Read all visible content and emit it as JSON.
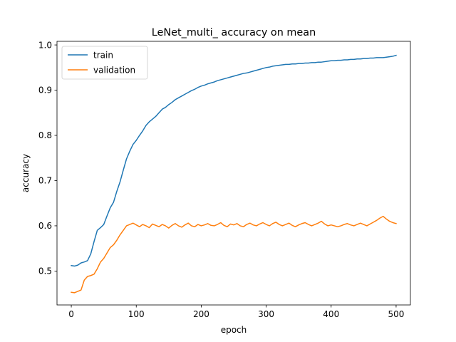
{
  "chart_data": {
    "type": "line",
    "title": "LeNet_multi_ accuracy on mean",
    "xlabel": "epoch",
    "ylabel": "accuracy",
    "xlim": [
      -22,
      522
    ],
    "ylim": [
      0.425,
      1.008
    ],
    "x_ticks": [
      0,
      100,
      200,
      300,
      400,
      500
    ],
    "y_ticks": [
      0.5,
      0.6,
      0.7,
      0.8,
      0.9,
      1.0
    ],
    "x_tick_labels": [
      "0",
      "100",
      "200",
      "300",
      "400",
      "500"
    ],
    "y_tick_labels": [
      "0.5",
      "0.6",
      "0.7",
      "0.8",
      "0.9",
      "1.0"
    ],
    "grid": false,
    "legend_position": "top-left",
    "x_range": [
      0,
      500
    ],
    "x_step": 5,
    "series": [
      {
        "name": "train",
        "color": "#1f77b4",
        "values": [
          0.512,
          0.511,
          0.513,
          0.518,
          0.52,
          0.523,
          0.538,
          0.565,
          0.59,
          0.596,
          0.603,
          0.622,
          0.64,
          0.652,
          0.676,
          0.697,
          0.723,
          0.748,
          0.765,
          0.78,
          0.789,
          0.8,
          0.81,
          0.822,
          0.83,
          0.836,
          0.842,
          0.85,
          0.858,
          0.862,
          0.868,
          0.873,
          0.879,
          0.883,
          0.887,
          0.891,
          0.895,
          0.899,
          0.902,
          0.906,
          0.909,
          0.911,
          0.914,
          0.916,
          0.918,
          0.921,
          0.923,
          0.925,
          0.927,
          0.929,
          0.931,
          0.933,
          0.935,
          0.937,
          0.938,
          0.94,
          0.942,
          0.944,
          0.946,
          0.948,
          0.95,
          0.951,
          0.953,
          0.954,
          0.955,
          0.956,
          0.957,
          0.957,
          0.958,
          0.958,
          0.959,
          0.959,
          0.96,
          0.96,
          0.961,
          0.961,
          0.962,
          0.962,
          0.963,
          0.964,
          0.965,
          0.965,
          0.966,
          0.966,
          0.967,
          0.967,
          0.968,
          0.968,
          0.969,
          0.969,
          0.97,
          0.97,
          0.971,
          0.971,
          0.972,
          0.972,
          0.972,
          0.973,
          0.974,
          0.975,
          0.977
        ]
      },
      {
        "name": "validation",
        "color": "#ff7f0e",
        "values": [
          0.453,
          0.452,
          0.455,
          0.458,
          0.48,
          0.488,
          0.49,
          0.493,
          0.505,
          0.52,
          0.528,
          0.54,
          0.552,
          0.558,
          0.568,
          0.58,
          0.59,
          0.6,
          0.603,
          0.606,
          0.602,
          0.598,
          0.603,
          0.6,
          0.596,
          0.604,
          0.601,
          0.598,
          0.603,
          0.6,
          0.595,
          0.601,
          0.605,
          0.6,
          0.597,
          0.602,
          0.606,
          0.6,
          0.598,
          0.603,
          0.6,
          0.602,
          0.605,
          0.601,
          0.6,
          0.603,
          0.607,
          0.601,
          0.598,
          0.604,
          0.602,
          0.605,
          0.6,
          0.598,
          0.603,
          0.606,
          0.602,
          0.6,
          0.604,
          0.607,
          0.603,
          0.6,
          0.605,
          0.608,
          0.603,
          0.6,
          0.603,
          0.606,
          0.601,
          0.598,
          0.602,
          0.605,
          0.607,
          0.603,
          0.6,
          0.603,
          0.606,
          0.61,
          0.604,
          0.6,
          0.602,
          0.6,
          0.598,
          0.6,
          0.603,
          0.605,
          0.602,
          0.6,
          0.603,
          0.606,
          0.603,
          0.6,
          0.604,
          0.608,
          0.612,
          0.617,
          0.621,
          0.615,
          0.61,
          0.607,
          0.605
        ]
      }
    ]
  }
}
